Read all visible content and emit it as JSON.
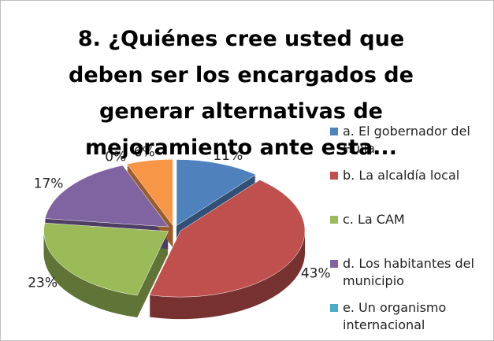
{
  "chart_data": {
    "type": "pie",
    "title": "8. ¿Quiénes cree usted que deben ser los encargados de generar alternativas de mejoramiento ante esta...",
    "categories": [
      "a. El gobernador del Huila",
      "b. La alcaldía local",
      "c. La CAM",
      "d. Los habitantes del municipio",
      "e. Un organismo internacional",
      null
    ],
    "values": [
      11,
      43,
      23,
      17,
      0,
      6
    ],
    "value_labels": [
      "11%",
      "43%",
      "23%",
      "17%",
      "0%",
      "6%"
    ],
    "colors": [
      "#4f81bd",
      "#c0504d",
      "#9bbb59",
      "#8064a2",
      "#4bacc6",
      "#f79646"
    ],
    "legend": "right"
  }
}
